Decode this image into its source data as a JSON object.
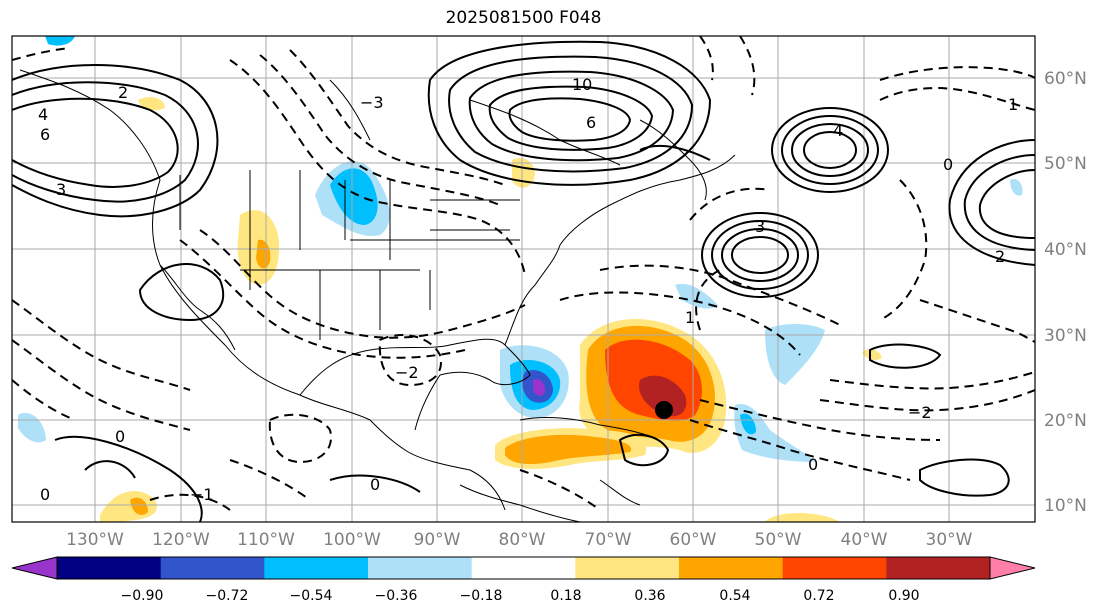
{
  "title": "2025081500 F048",
  "lat_labels": [
    "60°N",
    "50°N",
    "40°N",
    "30°N",
    "20°N",
    "10°N"
  ],
  "lon_labels": [
    "130°W",
    "120°W",
    "110°W",
    "100°W",
    "90°W",
    "80°W",
    "70°W",
    "60°W",
    "50°W",
    "40°W",
    "30°W"
  ],
  "colorbar": {
    "ticks": [
      "−0.90",
      "−0.72",
      "−0.54",
      "−0.36",
      "−0.18",
      "0.18",
      "0.36",
      "0.54",
      "0.72",
      "0.90"
    ],
    "colors": [
      "#9933cc",
      "#000080",
      "#3355cc",
      "#00bfff",
      "#aee0f8",
      "#ffffff",
      "#ffe680",
      "#ffa500",
      "#ff4500",
      "#b22222",
      "#ff7fa8"
    ]
  },
  "contour_labels": [
    "10",
    "6",
    "4",
    "3",
    "2",
    "1",
    "0",
    "−1",
    "−2",
    "−3"
  ],
  "storm_marker": "black-dot"
}
